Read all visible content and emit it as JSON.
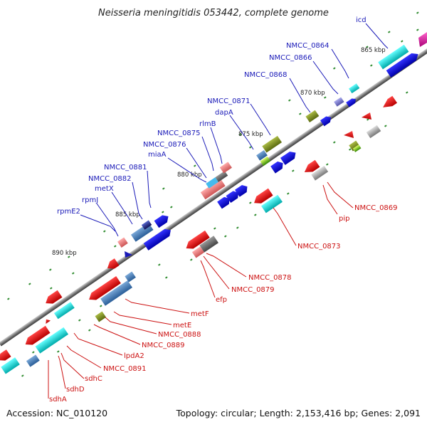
{
  "title": "Neisseria meningitidis 053442, complete genome",
  "footer": {
    "accession": "Accession: NC_010120",
    "stats": "Topology: circular; Length: 2,153,416 bp; Genes: 2,091"
  },
  "kbp_ticks": [
    "865 kbp",
    "870 kbp",
    "875 kbp",
    "880 kbp",
    "885 kbp",
    "890 kbp"
  ],
  "genes_top": [
    "icd",
    "NMCC_0864",
    "NMCC_0866",
    "NMCC_0868",
    "NMCC_0871",
    "dapA",
    "rlmB",
    "NMCC_0875",
    "NMCC_0876",
    "miaA",
    "NMCC_0881",
    "NMCC_0882",
    "metX",
    "rpmJ",
    "rpmE2"
  ],
  "genes_bottom": [
    "NMCC_0869",
    "pip",
    "NMCC_0873",
    "NMCC_0878",
    "NMCC_0879",
    "efp",
    "metF",
    "metE",
    "NMCC_0888",
    "NMCC_0889",
    "lpdA2",
    "NMCC_0891",
    "sdhC",
    "sdhD",
    "sdhA"
  ],
  "colors": {
    "forward": "#1a1ab8",
    "reverse": "#cc1111",
    "axis": "#777777",
    "tick_dots": "#2e8b2e",
    "cyan": "#22dddd",
    "steelblue": "#4a86c0",
    "olive": "#8a9a2a",
    "pink": "#ee8888",
    "gray": "#888888"
  }
}
